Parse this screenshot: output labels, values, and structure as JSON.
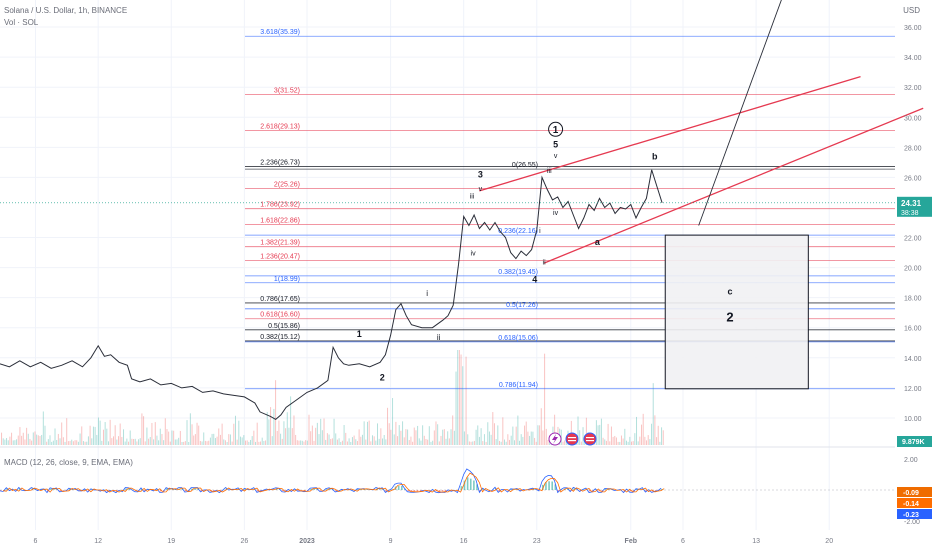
{
  "header": {
    "symbol": "Solana / U.S. Dollar, 1h, BINANCE",
    "volume": "Vol · SOL",
    "currency": "USD"
  },
  "chart_data": {
    "type": "line",
    "title": "Solana / U.S. Dollar, 1h, BINANCE",
    "price_axis": {
      "ticks": [
        {
          "v": 36,
          "label": "36.00"
        },
        {
          "v": 34,
          "label": "34.00"
        },
        {
          "v": 32,
          "label": "32.00"
        },
        {
          "v": 30,
          "label": "30.00"
        },
        {
          "v": 28,
          "label": "28.00"
        },
        {
          "v": 26,
          "label": "26.00"
        },
        {
          "v": 22,
          "label": "22.00"
        },
        {
          "v": 20,
          "label": "20.00"
        },
        {
          "v": 18,
          "label": "18.00"
        },
        {
          "v": 16,
          "label": "16.00"
        },
        {
          "v": 14,
          "label": "14.00"
        },
        {
          "v": 12,
          "label": "12.00"
        },
        {
          "v": 10,
          "label": "10.00"
        }
      ],
      "ylim": [
        8.2,
        37.8
      ]
    },
    "time_axis": {
      "ticks": [
        {
          "day": 6,
          "label": "6"
        },
        {
          "day": 12,
          "label": "12"
        },
        {
          "day": 19,
          "label": "19"
        },
        {
          "day": 26,
          "label": "26"
        },
        {
          "day": 32,
          "label": "2023"
        },
        {
          "day": 40,
          "label": "9"
        },
        {
          "day": 47,
          "label": "16"
        },
        {
          "day": 54,
          "label": "23"
        },
        {
          "day": 63,
          "label": "Feb"
        },
        {
          "day": 68,
          "label": "6"
        },
        {
          "day": 75,
          "label": "13"
        },
        {
          "day": 82,
          "label": "20"
        }
      ],
      "xlim": [
        2.6,
        88.3
      ]
    },
    "price_path": [
      [
        2.6,
        13.6
      ],
      [
        3.5,
        13.4
      ],
      [
        4.5,
        13.8
      ],
      [
        5.5,
        13.4
      ],
      [
        6.5,
        13.7
      ],
      [
        7.5,
        13.3
      ],
      [
        8.5,
        13.5
      ],
      [
        9.5,
        13.8
      ],
      [
        10.5,
        13.4
      ],
      [
        11.3,
        14.0
      ],
      [
        12.0,
        14.8
      ],
      [
        12.6,
        14.1
      ],
      [
        13.2,
        14.2
      ],
      [
        14.0,
        13.7
      ],
      [
        14.8,
        13.5
      ],
      [
        15.2,
        12.6
      ],
      [
        16.0,
        12.4
      ],
      [
        17.0,
        12.6
      ],
      [
        18.0,
        12.2
      ],
      [
        19.0,
        12.3
      ],
      [
        20.0,
        12.0
      ],
      [
        21.0,
        12.1
      ],
      [
        22.0,
        11.7
      ],
      [
        23.0,
        11.8
      ],
      [
        24.0,
        11.6
      ],
      [
        25.0,
        11.5
      ],
      [
        26.0,
        11.4
      ],
      [
        27.0,
        11.0
      ],
      [
        27.5,
        10.4
      ],
      [
        28.5,
        10.1
      ],
      [
        29.0,
        9.9
      ],
      [
        29.5,
        10.2
      ],
      [
        30.0,
        10.7
      ],
      [
        31.0,
        11.2
      ],
      [
        32.0,
        11.7
      ],
      [
        33.0,
        12.0
      ],
      [
        34.0,
        12.5
      ],
      [
        34.5,
        14.7
      ],
      [
        35.0,
        14.0
      ],
      [
        35.5,
        13.6
      ],
      [
        36.0,
        13.5
      ],
      [
        37.0,
        13.6
      ],
      [
        38.0,
        13.4
      ],
      [
        39.0,
        13.7
      ],
      [
        39.5,
        14.2
      ],
      [
        40.0,
        15.5
      ],
      [
        40.5,
        17.2
      ],
      [
        41.0,
        17.6
      ],
      [
        41.5,
        16.8
      ],
      [
        42.0,
        16.2
      ],
      [
        43.0,
        16.0
      ],
      [
        44.0,
        16.0
      ],
      [
        45.0,
        16.5
      ],
      [
        45.5,
        16.8
      ],
      [
        46.0,
        17.5
      ],
      [
        46.5,
        20.2
      ],
      [
        47.0,
        23.4
      ],
      [
        47.5,
        22.8
      ],
      [
        48.0,
        23.5
      ],
      [
        48.5,
        22.6
      ],
      [
        49.0,
        23.0
      ],
      [
        49.5,
        22.5
      ],
      [
        50.0,
        23.0
      ],
      [
        50.5,
        22.4
      ],
      [
        51.0,
        22.0
      ],
      [
        51.5,
        21.0
      ],
      [
        52.0,
        20.6
      ],
      [
        52.5,
        21.1
      ],
      [
        53.0,
        20.8
      ],
      [
        53.5,
        21.2
      ],
      [
        54.0,
        22.5
      ],
      [
        54.5,
        26.0
      ],
      [
        55.0,
        25.2
      ],
      [
        55.5,
        24.5
      ],
      [
        56.0,
        24.7
      ],
      [
        56.5,
        24.0
      ],
      [
        57.0,
        24.4
      ],
      [
        57.5,
        23.5
      ],
      [
        58.0,
        22.6
      ],
      [
        58.5,
        23.3
      ],
      [
        59.0,
        24.2
      ],
      [
        59.5,
        23.8
      ],
      [
        60.0,
        24.6
      ],
      [
        60.5,
        24.0
      ],
      [
        61.0,
        24.3
      ],
      [
        61.5,
        23.6
      ],
      [
        62.0,
        24.0
      ],
      [
        62.5,
        23.9
      ],
      [
        63.0,
        24.2
      ],
      [
        63.5,
        23.3
      ],
      [
        64.0,
        24.0
      ],
      [
        64.5,
        24.6
      ],
      [
        65.0,
        26.5
      ],
      [
        65.5,
        25.4
      ],
      [
        66.0,
        24.31
      ]
    ],
    "fib_levels": [
      {
        "label": "3.618(35.39)",
        "v": 35.39,
        "color": "#2962ff"
      },
      {
        "label": "3(31.52)",
        "v": 31.52,
        "color": "#e53950"
      },
      {
        "label": "2.618(29.13)",
        "v": 29.13,
        "color": "#e53950"
      },
      {
        "label": "2.236(26.73)",
        "v": 26.73,
        "color": "#131722"
      },
      {
        "label": "2(25.26)",
        "v": 25.26,
        "color": "#e53950"
      },
      {
        "label": "1.786(23.92)",
        "v": 23.92,
        "color": "#e53950"
      },
      {
        "label": "1.618(22.86)",
        "v": 22.86,
        "color": "#e53950"
      },
      {
        "label": "1.382(21.39)",
        "v": 21.39,
        "color": "#e53950"
      },
      {
        "label": "1.236(20.47)",
        "v": 20.47,
        "color": "#e53950"
      },
      {
        "label": "1(18.99)",
        "v": 18.99,
        "color": "#2962ff"
      },
      {
        "label": "0.786(17.65)",
        "v": 17.65,
        "color": "#131722"
      },
      {
        "label": "0.618(16.60)",
        "v": 16.6,
        "color": "#e53950"
      },
      {
        "label": "0.5(15.86)",
        "v": 15.86,
        "color": "#131722"
      },
      {
        "label": "0.382(15.12)",
        "v": 15.12,
        "color": "#131722"
      }
    ],
    "retracement_levels": [
      {
        "label": "0(26.55)",
        "v": 26.55,
        "color": "#131722"
      },
      {
        "label": "0.236(22.16)",
        "v": 22.16,
        "color": "#2962ff"
      },
      {
        "label": "0.382(19.45)",
        "v": 19.45,
        "color": "#2962ff"
      },
      {
        "label": "0.5(17.26)",
        "v": 17.26,
        "color": "#2962ff"
      },
      {
        "label": "0.618(15.06)",
        "v": 15.06,
        "color": "#2962ff"
      },
      {
        "label": "0.786(11.94)",
        "v": 11.94,
        "color": "#2962ff"
      }
    ],
    "wave_labels": [
      {
        "text": "1",
        "day": 37.0,
        "v": 15.4,
        "size": 9,
        "bold": true
      },
      {
        "text": "2",
        "day": 39.2,
        "v": 12.5,
        "size": 9,
        "bold": true
      },
      {
        "text": "i",
        "day": 43.5,
        "v": 18.1,
        "size": 8,
        "bold": false
      },
      {
        "text": "ii",
        "day": 44.6,
        "v": 15.2,
        "size": 8,
        "bold": false
      },
      {
        "text": "3",
        "day": 48.6,
        "v": 26.0,
        "size": 9,
        "bold": true
      },
      {
        "text": "v",
        "day": 48.6,
        "v": 25.1,
        "size": 7,
        "bold": false
      },
      {
        "text": "iii",
        "day": 47.8,
        "v": 24.6,
        "size": 7,
        "bold": false
      },
      {
        "text": "iv",
        "day": 47.9,
        "v": 20.8,
        "size": 7,
        "bold": false
      },
      {
        "text": "4",
        "day": 53.8,
        "v": 19.0,
        "size": 9,
        "bold": true
      },
      {
        "text": "i",
        "day": 54.3,
        "v": 22.3,
        "size": 7,
        "bold": false
      },
      {
        "text": "ii",
        "day": 54.7,
        "v": 20.2,
        "size": 7,
        "bold": false
      },
      {
        "text": "iii",
        "day": 55.2,
        "v": 26.3,
        "size": 7,
        "bold": false
      },
      {
        "text": "iv",
        "day": 55.8,
        "v": 23.5,
        "size": 7,
        "bold": false
      },
      {
        "text": "5",
        "day": 55.8,
        "v": 28.0,
        "size": 9,
        "bold": true
      },
      {
        "text": "v",
        "day": 55.8,
        "v": 27.3,
        "size": 7,
        "bold": false
      },
      {
        "text": "a",
        "day": 59.8,
        "v": 21.5,
        "size": 9,
        "bold": true
      },
      {
        "text": "b",
        "day": 65.3,
        "v": 27.2,
        "size": 9,
        "bold": true
      },
      {
        "text": "c",
        "day": 72.5,
        "v": 18.2,
        "size": 9,
        "bold": true
      },
      {
        "text": "2",
        "day": 72.5,
        "v": 16.4,
        "size": 13,
        "bold": true
      }
    ],
    "circled_label": {
      "text": "1",
      "day": 55.8,
      "v": 29.2
    },
    "channel_lines": [
      {
        "from": [
          48.5,
          25.1
        ],
        "to": [
          85.0,
          32.7
        ],
        "color": "#e53950"
      },
      {
        "from": [
          54.7,
          20.3
        ],
        "to": [
          91.0,
          30.6
        ],
        "color": "#e53950"
      }
    ],
    "arrow": {
      "from": [
        69.5,
        22.8
      ],
      "to": [
        78.0,
        38.9
      ]
    },
    "target_box": {
      "from_day": 66.3,
      "to_day": 80.0,
      "top": 22.16,
      "bottom": 11.94
    },
    "last_price": {
      "price": "24.31",
      "timer": "38:38"
    },
    "volume_badge": "9.879K",
    "macd": {
      "title": "MACD (12, 26, close, 9, EMA, EMA)",
      "ticks": [
        {
          "v": 2,
          "label": "2.00"
        },
        {
          "v": -2,
          "label": "-2.00"
        }
      ],
      "ylim": [
        -2.6,
        2.6
      ],
      "values": [
        {
          "label": "-0.09",
          "color": "#ef6c00"
        },
        {
          "label": "-0.14",
          "color": "#ff6d00"
        },
        {
          "label": "-0.23",
          "color": "#2962ff"
        }
      ]
    }
  }
}
